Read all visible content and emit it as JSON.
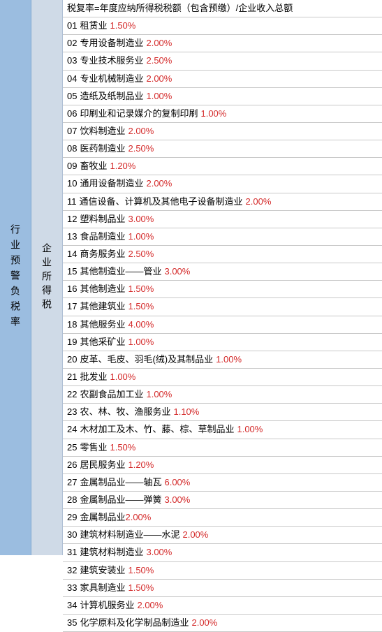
{
  "left_label": "行业预警负税率",
  "mid_label": "企业所得税",
  "formula": "税复率=年度应纳所得税税额（包含预缴）/企业收入总额",
  "rate_color": "#d42a2a",
  "text_color": "#000000",
  "border_color": "#c8c8c8",
  "left_bg": "#9bbde0",
  "mid_bg": "#cfdae7",
  "rows": [
    {
      "num": "01",
      "label": "租赁业",
      "rate": "1.50%"
    },
    {
      "num": "02",
      "label": "专用设备制造业",
      "rate": "2.00%"
    },
    {
      "num": "03",
      "label": "专业技术服务业",
      "rate": "2.50%"
    },
    {
      "num": "04",
      "label": "专业机械制造业",
      "rate": "2.00%"
    },
    {
      "num": "05",
      "label": "造纸及纸制品业",
      "rate": "1.00%"
    },
    {
      "num": "06",
      "label": "印刷业和记录媒介的复制印刷",
      "rate": "1.00%"
    },
    {
      "num": "07",
      "label": "饮料制造业",
      "rate": "2.00%"
    },
    {
      "num": "08",
      "label": "医药制造业",
      "rate": "2.50%"
    },
    {
      "num": "09",
      "label": "畜牧业",
      "rate": "1.20%"
    },
    {
      "num": "10",
      "label": "通用设备制造业",
      "rate": "2.00%"
    },
    {
      "num": "11",
      "label": "通信设备、计算机及其他电子设备制造业",
      "rate": "2.00%"
    },
    {
      "num": "12",
      "label": "塑料制品业",
      "rate": "3.00%"
    },
    {
      "num": "13",
      "label": "食品制造业",
      "rate": "1.00%"
    },
    {
      "num": "14",
      "label": "商务服务业",
      "rate": "2.50%"
    },
    {
      "num": "15",
      "label": "其他制造业——管业",
      "rate": "3.00%"
    },
    {
      "num": "16",
      "label": "其他制造业",
      "rate": "1.50%"
    },
    {
      "num": "17",
      "label": "其他建筑业",
      "rate": "1.50%"
    },
    {
      "num": "18",
      "label": "其他服务业",
      "rate": "4.00%"
    },
    {
      "num": "19",
      "label": "其他采矿业",
      "rate": "1.00%"
    },
    {
      "num": "20",
      "label": "皮革、毛皮、羽毛(绒)及其制品业",
      "rate": "1.00%"
    },
    {
      "num": "21",
      "label": "批发业",
      "rate": "1.00%"
    },
    {
      "num": "22",
      "label": "农副食品加工业",
      "rate": "1.00%"
    },
    {
      "num": "23",
      "label": "农、林、牧、渔服务业",
      "rate": "1.10%"
    },
    {
      "num": "24",
      "label": "木材加工及木、竹、藤、棕、草制品业",
      "rate": "1.00%"
    },
    {
      "num": "25",
      "label": "零售业",
      "rate": "1.50%"
    },
    {
      "num": "26",
      "label": "居民服务业",
      "rate": "1.20%"
    },
    {
      "num": "27",
      "label": "金属制品业——轴瓦",
      "rate": "6.00%"
    },
    {
      "num": "28",
      "label": "金属制品业——弹簧",
      "rate": "3.00%"
    },
    {
      "num": "29",
      "label": "金属制品业",
      "rate": "2.00%",
      "nospace": true
    },
    {
      "num": "30",
      "label": "建筑材料制造业——水泥",
      "rate": "2.00%"
    },
    {
      "num": "31",
      "label": "建筑材料制造业",
      "rate": "3.00%"
    },
    {
      "num": "32",
      "label": "建筑安装业",
      "rate": "1.50%"
    },
    {
      "num": "33",
      "label": "家具制造业",
      "rate": "1.50%"
    },
    {
      "num": "34",
      "label": "计算机服务业",
      "rate": "2.00%"
    },
    {
      "num": "35",
      "label": "化学原料及化学制品制造业",
      "rate": "2.00%"
    }
  ]
}
